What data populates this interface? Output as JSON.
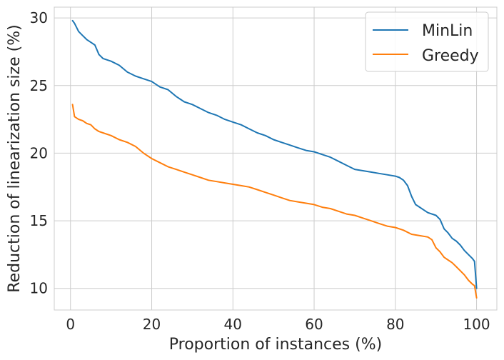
{
  "chart_data": {
    "type": "line",
    "xlabel": "Proportion of instances (%)",
    "ylabel": "Reduction of linearization size (%)",
    "xlim": [
      -4,
      105
    ],
    "ylim": [
      8.4,
      30.8
    ],
    "xticks": [
      0,
      20,
      40,
      60,
      80,
      100
    ],
    "yticks": [
      10,
      15,
      20,
      25,
      30
    ],
    "grid": true,
    "legend_position": "top-right",
    "series": [
      {
        "name": "MinLin",
        "color": "#1f77b4",
        "x": [
          0.5,
          1,
          2,
          3,
          4,
          5,
          6,
          7,
          8,
          10,
          12,
          14,
          16,
          18,
          20,
          22,
          24,
          26,
          28,
          30,
          32,
          34,
          36,
          38,
          40,
          42,
          44,
          46,
          48,
          50,
          52,
          54,
          56,
          58,
          60,
          62,
          64,
          66,
          68,
          70,
          72,
          74,
          76,
          78,
          80,
          81,
          82,
          83,
          84,
          85,
          86,
          87,
          88,
          90,
          91,
          92,
          93,
          94,
          95,
          96,
          97,
          98,
          99,
          99.5,
          100
        ],
        "y": [
          29.8,
          29.6,
          29.0,
          28.7,
          28.4,
          28.2,
          28.0,
          27.3,
          27.0,
          26.8,
          26.5,
          26.0,
          25.7,
          25.5,
          25.3,
          24.9,
          24.7,
          24.2,
          23.8,
          23.6,
          23.3,
          23.0,
          22.8,
          22.5,
          22.3,
          22.1,
          21.8,
          21.5,
          21.3,
          21.0,
          20.8,
          20.6,
          20.4,
          20.2,
          20.1,
          19.9,
          19.7,
          19.4,
          19.1,
          18.8,
          18.7,
          18.6,
          18.5,
          18.4,
          18.3,
          18.2,
          18.0,
          17.6,
          16.8,
          16.2,
          16.0,
          15.8,
          15.6,
          15.4,
          15.1,
          14.4,
          14.1,
          13.7,
          13.5,
          13.2,
          12.8,
          12.5,
          12.2,
          12.0,
          10.0
        ]
      },
      {
        "name": "Greedy",
        "color": "#ff7f0e",
        "x": [
          0.5,
          1,
          2,
          3,
          4,
          5,
          6,
          7,
          8,
          10,
          12,
          14,
          16,
          18,
          20,
          22,
          24,
          26,
          28,
          30,
          32,
          34,
          36,
          38,
          40,
          42,
          44,
          46,
          48,
          50,
          52,
          54,
          56,
          58,
          60,
          62,
          64,
          66,
          68,
          70,
          72,
          74,
          76,
          78,
          80,
          82,
          84,
          86,
          88,
          89,
          90,
          91,
          92,
          93,
          94,
          95,
          96,
          97,
          98,
          99,
          99.5,
          100
        ],
        "y": [
          23.6,
          22.7,
          22.5,
          22.4,
          22.2,
          22.1,
          21.8,
          21.6,
          21.5,
          21.3,
          21.0,
          20.8,
          20.5,
          20.0,
          19.6,
          19.3,
          19.0,
          18.8,
          18.6,
          18.4,
          18.2,
          18.0,
          17.9,
          17.8,
          17.7,
          17.6,
          17.5,
          17.3,
          17.1,
          16.9,
          16.7,
          16.5,
          16.4,
          16.3,
          16.2,
          16.0,
          15.9,
          15.7,
          15.5,
          15.4,
          15.2,
          15.0,
          14.8,
          14.6,
          14.5,
          14.3,
          14.0,
          13.9,
          13.8,
          13.6,
          13.0,
          12.7,
          12.3,
          12.1,
          11.9,
          11.6,
          11.3,
          11.0,
          10.6,
          10.3,
          10.2,
          9.3
        ]
      }
    ]
  }
}
